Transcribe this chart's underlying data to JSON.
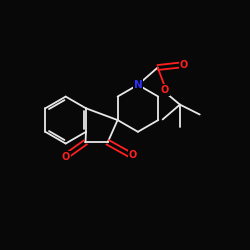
{
  "background_color": "#080808",
  "bond_color": "#e8e8e8",
  "atom_colors": {
    "O": "#ff2020",
    "N": "#3030ff"
  },
  "bond_width": 1.3,
  "figsize": [
    2.5,
    2.5
  ],
  "dpi": 100,
  "xlim": [
    0.0,
    1.0
  ],
  "ylim": [
    0.0,
    1.0
  ]
}
